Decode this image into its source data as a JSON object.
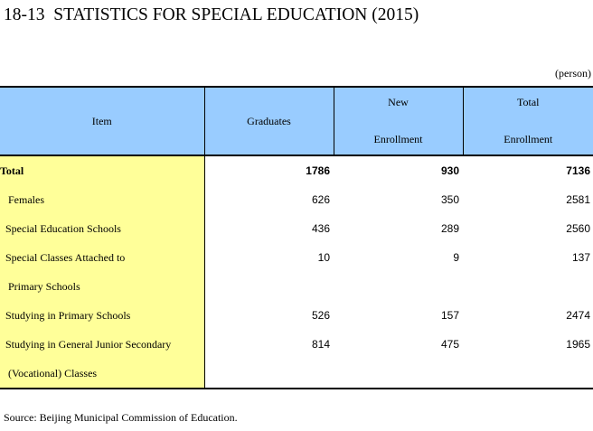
{
  "title": "18-13  STATISTICS FOR SPECIAL EDUCATION (2015)",
  "unit": "(person)",
  "header": {
    "item": "Item",
    "graduates": "Graduates",
    "new_enrollment": [
      "New",
      "Enrollment"
    ],
    "total_enrollment": [
      "Total",
      "Enrollment"
    ]
  },
  "rows": [
    {
      "item": "Total",
      "graduates": "1786",
      "new_enrollment": "930",
      "total_enrollment": "7136"
    },
    {
      "item": "   Females",
      "graduates": "626",
      "new_enrollment": "350",
      "total_enrollment": "2581"
    },
    {
      "item": "  Special Education Schools",
      "graduates": "436",
      "new_enrollment": "289",
      "total_enrollment": "2560"
    },
    {
      "item": "  Special Classes Attached to",
      "graduates": "10",
      "new_enrollment": "9",
      "total_enrollment": "137"
    },
    {
      "item": "   Primary Schools",
      "graduates": "",
      "new_enrollment": "",
      "total_enrollment": ""
    },
    {
      "item": "  Studying in Primary Schools",
      "graduates": "526",
      "new_enrollment": "157",
      "total_enrollment": "2474"
    },
    {
      "item": "  Studying in General Junior Secondary",
      "graduates": "814",
      "new_enrollment": "475",
      "total_enrollment": "1965"
    },
    {
      "item": "   (Vocational) Classes",
      "graduates": "",
      "new_enrollment": "",
      "total_enrollment": ""
    }
  ],
  "source": "Source: Beijing Municipal Commission of Education.",
  "colors": {
    "header_bg": "#99ccff",
    "item_bg": "#ffff99"
  }
}
